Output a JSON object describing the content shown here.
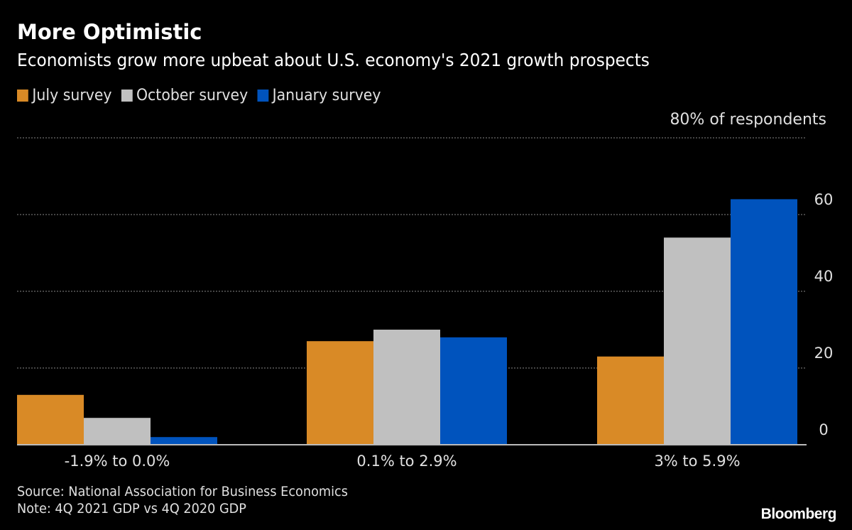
{
  "chart_data": {
    "type": "bar",
    "title": "More Optimistic",
    "subtitle": "Economists grow more upbeat about U.S. economy's 2021 growth prospects",
    "ylabel": "80% of respondents",
    "categories": [
      "-1.9% to 0.0%",
      "0.1% to 2.9%",
      "3% to 5.9%"
    ],
    "series": [
      {
        "name": "July survey",
        "color": "#d98a26",
        "values": [
          13,
          27,
          23
        ]
      },
      {
        "name": "October survey",
        "color": "#c0c0c0",
        "values": [
          7,
          30,
          54
        ]
      },
      {
        "name": "January survey",
        "color": "#0053bd",
        "values": [
          2,
          28,
          64
        ]
      }
    ],
    "ylim": [
      0,
      80
    ],
    "yticks": [
      0,
      20,
      40,
      60
    ],
    "grid": true,
    "legend": "top-left",
    "y_axis_side": "right",
    "source": "Source: National Association for Business Economics",
    "note": "Note: 4Q 2021 GDP vs 4Q 2020 GDP"
  },
  "brand": "Bloomberg"
}
